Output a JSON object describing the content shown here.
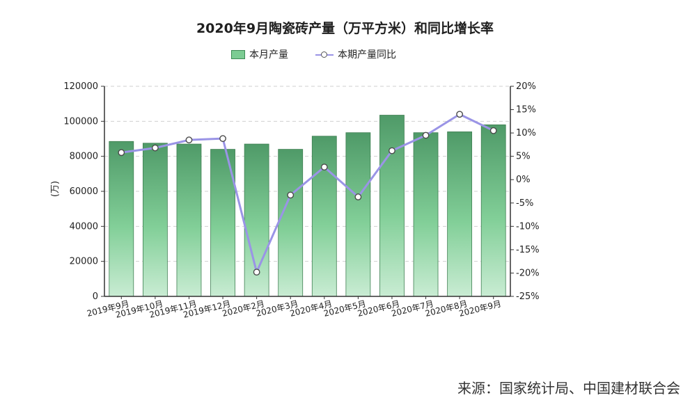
{
  "chart_data": {
    "type": "bar",
    "title": "2020年9月陶瓷砖产量（万平方米）和同比增长率",
    "ylabel": "(万)",
    "categories": [
      "2019年9月",
      "2019年10月",
      "2019年11月",
      "2019年12月",
      "2020年2月",
      "2020年3月",
      "2020年4月",
      "2020年5月",
      "2020年6月",
      "2020年7月",
      "2020年8月",
      "2020年9月"
    ],
    "series": [
      {
        "name": "本月产量",
        "type": "bar",
        "values": [
          88500,
          87500,
          87000,
          84000,
          87000,
          84000,
          91500,
          93500,
          103500,
          93500,
          94000,
          98000
        ]
      },
      {
        "name": "本期产量同比",
        "type": "line",
        "axis": "right",
        "values": [
          5.8,
          6.8,
          8.5,
          8.8,
          -19.8,
          -3.3,
          2.7,
          -3.7,
          6.2,
          9.5,
          14.0,
          10.5
        ]
      }
    ],
    "ylim": [
      0,
      120000
    ],
    "yticks": [
      0,
      20000,
      40000,
      60000,
      80000,
      100000,
      120000
    ],
    "y2lim": [
      -25,
      20
    ],
    "y2ticks": [
      "-25%",
      "-20%",
      "-15%",
      "-10%",
      "-5%",
      "0%",
      "5%",
      "10%",
      "15%",
      "20%"
    ],
    "grid": true,
    "legend": "top-center"
  },
  "source": "来源：国家统计局、中国建材联合会"
}
